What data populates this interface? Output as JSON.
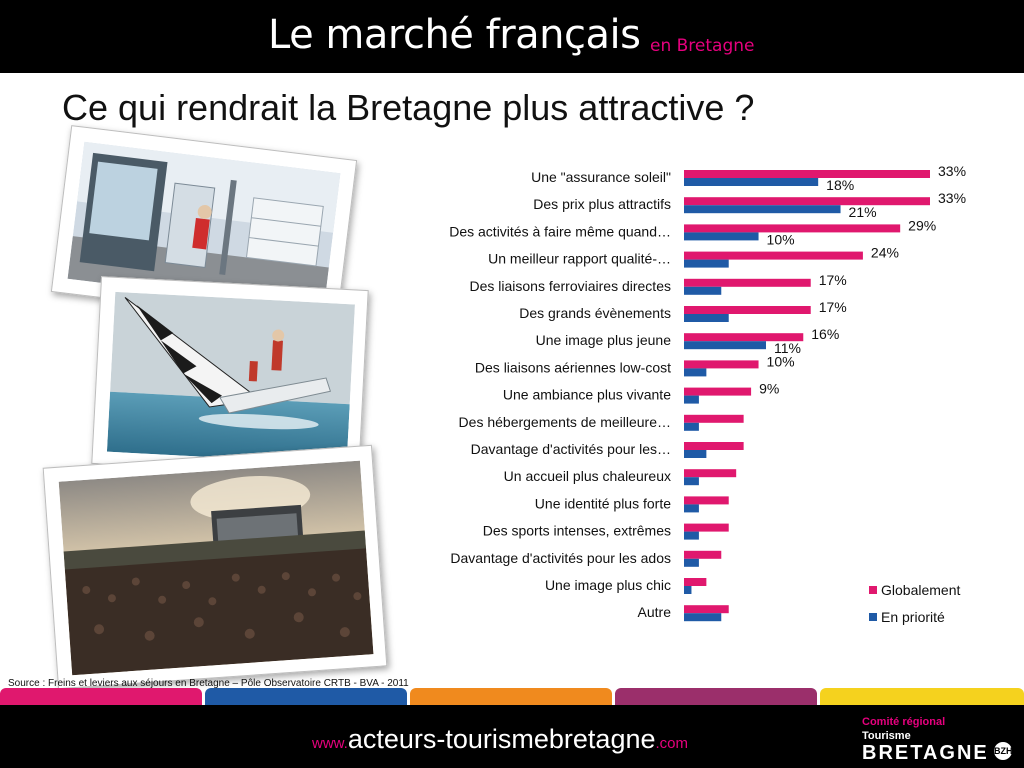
{
  "header": {
    "title": "Le marché français",
    "subtitle": "en Bretagne"
  },
  "slide_title": "Ce qui rendrait la Bretagne plus attractive ?",
  "chart_data": {
    "type": "bar",
    "orientation": "horizontal",
    "categories": [
      "Une \"assurance soleil\"",
      "Des prix plus attractifs",
      "Des activités à faire même quand…",
      "Un meilleur rapport qualité-…",
      "Des liaisons ferroviaires directes",
      "Des grands évènements",
      "Une image plus jeune",
      "Des liaisons aériennes low-cost",
      "Une ambiance plus vivante",
      "Des hébergements de meilleure…",
      "Davantage d'activités pour les…",
      "Un accueil plus chaleureux",
      "Une identité plus forte",
      "Des sports intenses, extrêmes",
      "Davantage d'activités pour les ados",
      "Une image plus chic",
      "Autre"
    ],
    "series": [
      {
        "name": "Globalement",
        "color": "#e0186e",
        "values": [
          33,
          33,
          29,
          24,
          17,
          17,
          16,
          10,
          9,
          8,
          8,
          7,
          6,
          6,
          5,
          3,
          6
        ],
        "labels": [
          "33%",
          "33%",
          "29%",
          "24%",
          "17%",
          "17%",
          "16%",
          "10%",
          "9%",
          "",
          "",
          "",
          "",
          "",
          "",
          "",
          ""
        ]
      },
      {
        "name": "En priorité",
        "color": "#1f5aa6",
        "values": [
          18,
          21,
          10,
          6,
          5,
          6,
          11,
          3,
          2,
          2,
          3,
          2,
          2,
          2,
          2,
          1,
          5
        ],
        "labels": [
          "18%",
          "21%",
          "10%",
          "",
          "",
          "",
          "11%",
          "",
          "",
          "",
          "",
          "",
          "",
          "",
          "",
          "",
          ""
        ]
      }
    ],
    "xlim": [
      0,
      38
    ],
    "legend_position": "bottom-right",
    "grid": false
  },
  "source": "Source : Freins et leviers aux séjours en Bretagne – Pôle Observatoire CRTB - BVA - 2011",
  "color_tabs": [
    "#e0186e",
    "#1f5aa6",
    "#f08a1e",
    "#9b2f6b",
    "#f5d21e"
  ],
  "footer": {
    "url_prefix": "www.",
    "url_main": "acteurs-tourismebretagne",
    "url_suffix": ".com"
  },
  "logo": {
    "line1": "Comité régional",
    "line2": "Tourisme",
    "line3": "BRETAGNE",
    "badge": "BZH"
  }
}
